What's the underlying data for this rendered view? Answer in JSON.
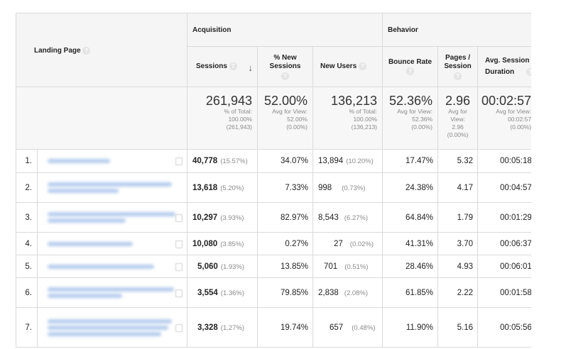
{
  "headers": {
    "landing_page": "Landing Page",
    "acquisition": "Acquisition",
    "behavior": "Behavior",
    "sessions": "Sessions",
    "pct_new_sessions": "% New Sessions",
    "new_users": "New Users",
    "bounce_rate": "Bounce Rate",
    "pages_session": "Pages / Session",
    "avg_session_duration": "Avg. Session Duration",
    "help_icon": "?",
    "sort_arrow": "↓"
  },
  "totals": {
    "sessions": {
      "value": "261,943",
      "l1": "% of Total:",
      "l2": "100.00%",
      "l3": "(261,943)"
    },
    "pct_new_sessions": {
      "value": "52.00%",
      "l1": "Avg for View:",
      "l2": "52.00%",
      "l3": "(0.00%)"
    },
    "new_users": {
      "value": "136,213",
      "l1": "% of Total:",
      "l2": "100.00%",
      "l3": "(136,213)"
    },
    "bounce_rate": {
      "value": "52.36%",
      "l1": "Avg for View:",
      "l2": "52.36%",
      "l3": "(0.00%)"
    },
    "pages_session": {
      "value": "2.96",
      "l1": "Avg for",
      "l2": "View:",
      "l3": "2.96",
      "l4": "(0.00%)"
    },
    "avg_session_duration": {
      "value": "00:02:57",
      "l1": "Avg for View:",
      "l2": "00:02:57",
      "l3": "(0.00%)"
    }
  },
  "rows": [
    {
      "index": "1.",
      "sessions": "40,778",
      "sessions_pct": "(15.57%)",
      "pct_new": "34.07%",
      "new_users": "13,894",
      "new_users_pct": "(10.20%)",
      "bounce": "17.47%",
      "pages": "5.32",
      "duration": "00:05:18"
    },
    {
      "index": "2.",
      "sessions": "13,618",
      "sessions_pct": "(5.20%)",
      "pct_new": "7.33%",
      "new_users": "998",
      "new_users_pct": "(0.73%)",
      "bounce": "24.38%",
      "pages": "4.17",
      "duration": "00:04:57"
    },
    {
      "index": "3.",
      "sessions": "10,297",
      "sessions_pct": "(3.93%)",
      "pct_new": "82.97%",
      "new_users": "8,543",
      "new_users_pct": "(6.27%)",
      "bounce": "64.84%",
      "pages": "1.79",
      "duration": "00:01:29"
    },
    {
      "index": "4.",
      "sessions": "10,080",
      "sessions_pct": "(3.85%)",
      "pct_new": "0.27%",
      "new_users": "27",
      "new_users_pct": "(0.02%)",
      "bounce": "41.31%",
      "pages": "3.70",
      "duration": "00:06:37"
    },
    {
      "index": "5.",
      "sessions": "5,060",
      "sessions_pct": "(1.93%)",
      "pct_new": "13.85%",
      "new_users": "701",
      "new_users_pct": "(0.51%)",
      "bounce": "28.46%",
      "pages": "4.93",
      "duration": "00:06:01"
    },
    {
      "index": "6.",
      "sessions": "3,554",
      "sessions_pct": "(1.36%)",
      "pct_new": "79.85%",
      "new_users": "2,838",
      "new_users_pct": "(2.08%)",
      "bounce": "61.85%",
      "pages": "2.22",
      "duration": "00:01:58"
    },
    {
      "index": "7.",
      "sessions": "3,328",
      "sessions_pct": "(1.27%)",
      "pct_new": "19.74%",
      "new_users": "657",
      "new_users_pct": "(0.48%)",
      "bounce": "11.90%",
      "pages": "5.16",
      "duration": "00:05:56"
    }
  ],
  "colors": {
    "header_bg": "#f5f5f5",
    "border": "#dadada",
    "muted_text": "#8a8a8a",
    "blurred_link": "#a8c3ea"
  }
}
